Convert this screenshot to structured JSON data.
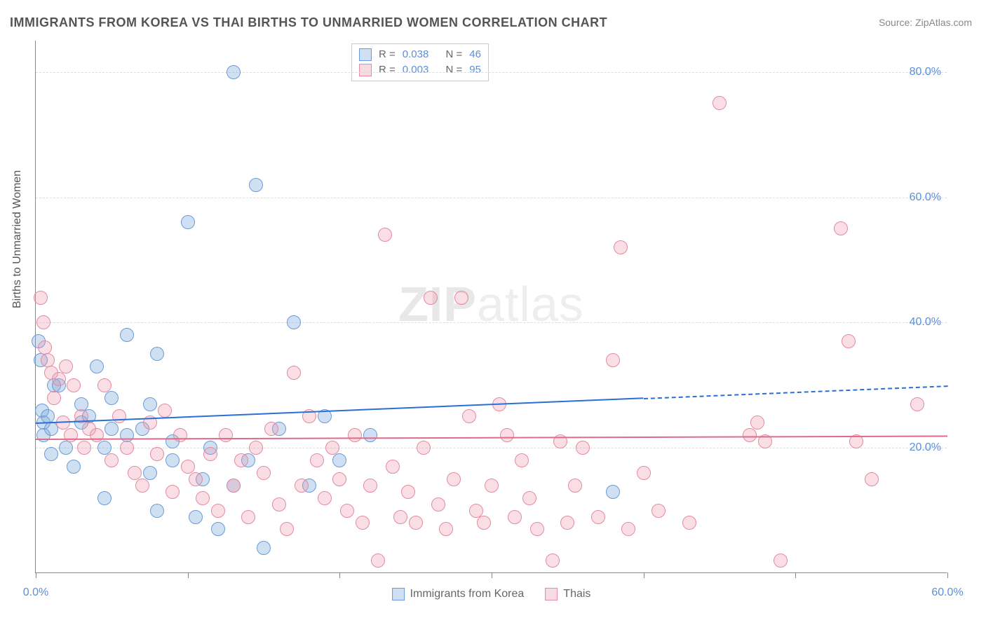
{
  "title": "IMMIGRANTS FROM KOREA VS THAI BIRTHS TO UNMARRIED WOMEN CORRELATION CHART",
  "source_label": "Source: ZipAtlas.com",
  "y_axis_label": "Births to Unmarried Women",
  "watermark": {
    "bold": "ZIP",
    "rest": "atlas"
  },
  "chart": {
    "type": "scatter",
    "xlim": [
      0,
      60
    ],
    "ylim": [
      0,
      85
    ],
    "background_color": "#ffffff",
    "grid_color": "#dddddd",
    "axis_color": "#888888",
    "tick_color": "#5a8fd6",
    "yticks": [
      {
        "value": 20,
        "label": "20.0%"
      },
      {
        "value": 40,
        "label": "40.0%"
      },
      {
        "value": 60,
        "label": "60.0%"
      },
      {
        "value": 80,
        "label": "80.0%"
      }
    ],
    "xticks": [
      {
        "value": 0,
        "label": "0.0%"
      },
      {
        "value": 10,
        "label": ""
      },
      {
        "value": 20,
        "label": ""
      },
      {
        "value": 30,
        "label": ""
      },
      {
        "value": 40,
        "label": ""
      },
      {
        "value": 50,
        "label": ""
      },
      {
        "value": 60,
        "label": "60.0%"
      }
    ],
    "series": [
      {
        "name": "Immigrants from Korea",
        "color_fill": "rgba(120,165,220,0.35)",
        "color_stroke": "#6a9bd8",
        "swatch_fill": "#cfe0f4",
        "swatch_border": "#6a9bd8",
        "marker_radius": 10,
        "r_label": "R =",
        "r_value": "0.038",
        "n_label": "N =",
        "n_value": "46",
        "trend": {
          "x1": 0,
          "y1": 24,
          "x2": 60,
          "y2": 30,
          "solid_until_x": 40,
          "color": "#2a6fd6"
        },
        "points": [
          {
            "x": 0.2,
            "y": 37
          },
          {
            "x": 0.3,
            "y": 34
          },
          {
            "x": 0.4,
            "y": 26
          },
          {
            "x": 0.5,
            "y": 24
          },
          {
            "x": 0.5,
            "y": 22
          },
          {
            "x": 0.8,
            "y": 25
          },
          {
            "x": 1.0,
            "y": 19
          },
          {
            "x": 1.0,
            "y": 23
          },
          {
            "x": 1.2,
            "y": 30
          },
          {
            "x": 1.5,
            "y": 30
          },
          {
            "x": 2.0,
            "y": 20
          },
          {
            "x": 2.5,
            "y": 17
          },
          {
            "x": 3.0,
            "y": 24
          },
          {
            "x": 3.0,
            "y": 27
          },
          {
            "x": 3.5,
            "y": 25
          },
          {
            "x": 4.0,
            "y": 33
          },
          {
            "x": 4.5,
            "y": 20
          },
          {
            "x": 4.5,
            "y": 12
          },
          {
            "x": 5.0,
            "y": 28
          },
          {
            "x": 5.0,
            "y": 23
          },
          {
            "x": 6.0,
            "y": 22
          },
          {
            "x": 6.0,
            "y": 38
          },
          {
            "x": 7.0,
            "y": 23
          },
          {
            "x": 7.5,
            "y": 16
          },
          {
            "x": 7.5,
            "y": 27
          },
          {
            "x": 8.0,
            "y": 35
          },
          {
            "x": 8.0,
            "y": 10
          },
          {
            "x": 9.0,
            "y": 18
          },
          {
            "x": 9.0,
            "y": 21
          },
          {
            "x": 10.0,
            "y": 56
          },
          {
            "x": 10.5,
            "y": 9
          },
          {
            "x": 11.0,
            "y": 15
          },
          {
            "x": 11.5,
            "y": 20
          },
          {
            "x": 12.0,
            "y": 7
          },
          {
            "x": 13.0,
            "y": 80
          },
          {
            "x": 13.0,
            "y": 14
          },
          {
            "x": 14.0,
            "y": 18
          },
          {
            "x": 14.5,
            "y": 62
          },
          {
            "x": 15.0,
            "y": 4
          },
          {
            "x": 16.0,
            "y": 23
          },
          {
            "x": 17.0,
            "y": 40
          },
          {
            "x": 18.0,
            "y": 14
          },
          {
            "x": 19.0,
            "y": 25
          },
          {
            "x": 20.0,
            "y": 18
          },
          {
            "x": 22.0,
            "y": 22
          },
          {
            "x": 38.0,
            "y": 13
          }
        ]
      },
      {
        "name": "Thais",
        "color_fill": "rgba(235,150,170,0.30)",
        "color_stroke": "#e48aa2",
        "swatch_fill": "#f6dbe2",
        "swatch_border": "#e48aa2",
        "marker_radius": 10,
        "r_label": "R =",
        "r_value": "0.003",
        "n_label": "N =",
        "n_value": "95",
        "trend": {
          "x1": 0,
          "y1": 21.5,
          "x2": 60,
          "y2": 22,
          "solid_until_x": 60,
          "color": "#e06a8a"
        },
        "points": [
          {
            "x": 0.3,
            "y": 44
          },
          {
            "x": 0.5,
            "y": 40
          },
          {
            "x": 0.6,
            "y": 36
          },
          {
            "x": 0.8,
            "y": 34
          },
          {
            "x": 1.0,
            "y": 32
          },
          {
            "x": 1.2,
            "y": 28
          },
          {
            "x": 1.5,
            "y": 31
          },
          {
            "x": 1.8,
            "y": 24
          },
          {
            "x": 2.0,
            "y": 33
          },
          {
            "x": 2.3,
            "y": 22
          },
          {
            "x": 2.5,
            "y": 30
          },
          {
            "x": 3.0,
            "y": 25
          },
          {
            "x": 3.2,
            "y": 20
          },
          {
            "x": 3.5,
            "y": 23
          },
          {
            "x": 4.0,
            "y": 22
          },
          {
            "x": 4.5,
            "y": 30
          },
          {
            "x": 5.0,
            "y": 18
          },
          {
            "x": 5.5,
            "y": 25
          },
          {
            "x": 6.0,
            "y": 20
          },
          {
            "x": 6.5,
            "y": 16
          },
          {
            "x": 7.0,
            "y": 14
          },
          {
            "x": 7.5,
            "y": 24
          },
          {
            "x": 8.0,
            "y": 19
          },
          {
            "x": 8.5,
            "y": 26
          },
          {
            "x": 9.0,
            "y": 13
          },
          {
            "x": 9.5,
            "y": 22
          },
          {
            "x": 10.0,
            "y": 17
          },
          {
            "x": 10.5,
            "y": 15
          },
          {
            "x": 11.0,
            "y": 12
          },
          {
            "x": 11.5,
            "y": 19
          },
          {
            "x": 12.0,
            "y": 10
          },
          {
            "x": 12.5,
            "y": 22
          },
          {
            "x": 13.0,
            "y": 14
          },
          {
            "x": 13.5,
            "y": 18
          },
          {
            "x": 14.0,
            "y": 9
          },
          {
            "x": 14.5,
            "y": 20
          },
          {
            "x": 15.0,
            "y": 16
          },
          {
            "x": 15.5,
            "y": 23
          },
          {
            "x": 16.0,
            "y": 11
          },
          {
            "x": 16.5,
            "y": 7
          },
          {
            "x": 17.0,
            "y": 32
          },
          {
            "x": 17.5,
            "y": 14
          },
          {
            "x": 18.0,
            "y": 25
          },
          {
            "x": 18.5,
            "y": 18
          },
          {
            "x": 19.0,
            "y": 12
          },
          {
            "x": 19.5,
            "y": 20
          },
          {
            "x": 20.0,
            "y": 15
          },
          {
            "x": 20.5,
            "y": 10
          },
          {
            "x": 21.0,
            "y": 22
          },
          {
            "x": 21.5,
            "y": 8
          },
          {
            "x": 22.0,
            "y": 14
          },
          {
            "x": 22.5,
            "y": 2
          },
          {
            "x": 23.0,
            "y": 54
          },
          {
            "x": 23.5,
            "y": 17
          },
          {
            "x": 24.0,
            "y": 9
          },
          {
            "x": 24.5,
            "y": 13
          },
          {
            "x": 25.0,
            "y": 8
          },
          {
            "x": 25.5,
            "y": 20
          },
          {
            "x": 26.0,
            "y": 44
          },
          {
            "x": 26.5,
            "y": 11
          },
          {
            "x": 27.0,
            "y": 7
          },
          {
            "x": 27.5,
            "y": 15
          },
          {
            "x": 28.0,
            "y": 44
          },
          {
            "x": 28.5,
            "y": 25
          },
          {
            "x": 29.0,
            "y": 10
          },
          {
            "x": 29.5,
            "y": 8
          },
          {
            "x": 30.0,
            "y": 14
          },
          {
            "x": 30.5,
            "y": 27
          },
          {
            "x": 31.0,
            "y": 22
          },
          {
            "x": 31.5,
            "y": 9
          },
          {
            "x": 32.0,
            "y": 18
          },
          {
            "x": 32.5,
            "y": 12
          },
          {
            "x": 33.0,
            "y": 7
          },
          {
            "x": 34.0,
            "y": 2
          },
          {
            "x": 34.5,
            "y": 21
          },
          {
            "x": 35.0,
            "y": 8
          },
          {
            "x": 35.5,
            "y": 14
          },
          {
            "x": 36.0,
            "y": 20
          },
          {
            "x": 37.0,
            "y": 9
          },
          {
            "x": 38.0,
            "y": 34
          },
          {
            "x": 38.5,
            "y": 52
          },
          {
            "x": 39.0,
            "y": 7
          },
          {
            "x": 40.0,
            "y": 16
          },
          {
            "x": 41.0,
            "y": 10
          },
          {
            "x": 43.0,
            "y": 8
          },
          {
            "x": 45.0,
            "y": 75
          },
          {
            "x": 47.0,
            "y": 22
          },
          {
            "x": 47.5,
            "y": 24
          },
          {
            "x": 48.0,
            "y": 21
          },
          {
            "x": 49.0,
            "y": 2
          },
          {
            "x": 53.0,
            "y": 55
          },
          {
            "x": 53.5,
            "y": 37
          },
          {
            "x": 54.0,
            "y": 21
          },
          {
            "x": 55.0,
            "y": 15
          },
          {
            "x": 58.0,
            "y": 27
          }
        ]
      }
    ],
    "legend_bottom": [
      {
        "label": "Immigrants from Korea",
        "swatch_fill": "#cfe0f4",
        "swatch_border": "#6a9bd8"
      },
      {
        "label": "Thais",
        "swatch_fill": "#f6dbe2",
        "swatch_border": "#e48aa2"
      }
    ]
  }
}
